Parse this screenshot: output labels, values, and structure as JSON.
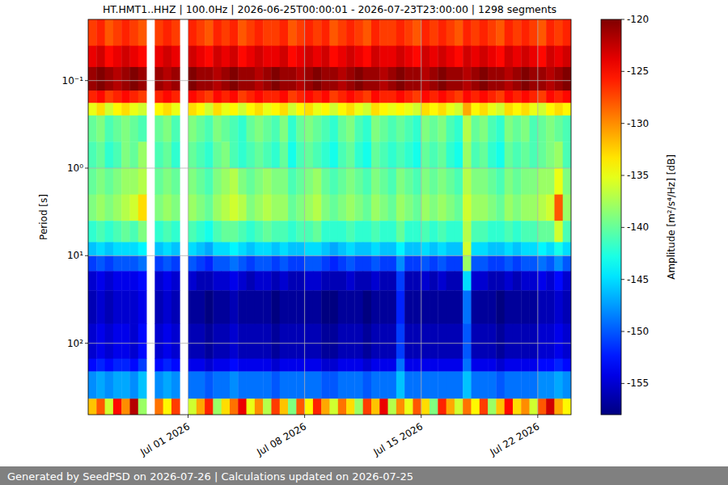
{
  "chart_data": {
    "type": "heatmap",
    "title": "HT.HMT1..HHZ | 100.0Hz | 2026-06-25T00:00:01 - 2026-07-23T23:00:00 | 1298 segments",
    "ylabel": "Period [s]",
    "colorbar_label": "Amplitude [m²/s⁴/Hz] [dB]",
    "footer": "Generated by SeedPSD on 2026-07-26 | Calculations updated on 2026-07-25",
    "x_bins": [
      "2026-06-25T00:00",
      "2026-06-25T12:00",
      "2026-06-26T00:00",
      "2026-06-26T12:00",
      "2026-06-27T00:00",
      "2026-06-27T12:00",
      "2026-06-28T00:00",
      "2026-06-28T12:00",
      "2026-06-29T00:00",
      "2026-06-29T12:00",
      "2026-06-30T00:00",
      "2026-06-30T12:00",
      "2026-07-01T00:00",
      "2026-07-01T12:00",
      "2026-07-02T00:00",
      "2026-07-02T12:00",
      "2026-07-03T00:00",
      "2026-07-03T12:00",
      "2026-07-04T00:00",
      "2026-07-04T12:00",
      "2026-07-05T00:00",
      "2026-07-05T12:00",
      "2026-07-06T00:00",
      "2026-07-06T12:00",
      "2026-07-07T00:00",
      "2026-07-07T12:00",
      "2026-07-08T00:00",
      "2026-07-08T12:00",
      "2026-07-09T00:00",
      "2026-07-09T12:00",
      "2026-07-10T00:00",
      "2026-07-10T12:00",
      "2026-07-11T00:00",
      "2026-07-11T12:00",
      "2026-07-12T00:00",
      "2026-07-12T12:00",
      "2026-07-13T00:00",
      "2026-07-13T12:00",
      "2026-07-14T00:00",
      "2026-07-14T12:00",
      "2026-07-15T00:00",
      "2026-07-15T12:00",
      "2026-07-16T00:00",
      "2026-07-16T12:00",
      "2026-07-17T00:00",
      "2026-07-17T12:00",
      "2026-07-18T00:00",
      "2026-07-18T12:00",
      "2026-07-19T00:00",
      "2026-07-19T12:00",
      "2026-07-20T00:00",
      "2026-07-20T12:00",
      "2026-07-21T00:00",
      "2026-07-21T12:00",
      "2026-07-22T00:00",
      "2026-07-22T12:00",
      "2026-07-23T00:00",
      "2026-07-23T12:00",
      "2026-07-24T00:00"
    ],
    "y_bins": [
      0.02,
      0.04,
      0.07,
      0.13,
      0.18,
      0.25,
      0.5,
      1,
      2,
      4,
      7,
      10,
      15,
      25,
      60,
      150,
      210,
      430,
      655
    ],
    "values": [
      [
        -127,
        -126,
        -128,
        -127,
        -126,
        -127,
        -128,
        null,
        -127,
        -126,
        -127,
        null,
        -126,
        -127,
        -128,
        -126,
        -127,
        -126,
        -128,
        -127,
        -126,
        -127,
        -127,
        -126,
        -128,
        -127,
        -126,
        -127,
        -126,
        -128,
        -127,
        -126,
        -127,
        -128,
        -126,
        -127,
        -127,
        -126,
        -127,
        -128,
        -126,
        -127,
        -126,
        -127,
        -128,
        -126,
        -127,
        -126,
        -127,
        -128,
        -126,
        -127,
        -126,
        -127,
        -128,
        -126,
        -127,
        -126
      ],
      [
        -124,
        -123,
        -125,
        -124,
        -123,
        -124,
        -125,
        null,
        -124,
        -123,
        -124,
        null,
        -123,
        -124,
        -125,
        -123,
        -124,
        -123,
        -125,
        -124,
        -123,
        -124,
        -124,
        -123,
        -125,
        -124,
        -123,
        -124,
        -123,
        -125,
        -124,
        -123,
        -124,
        -125,
        -123,
        -124,
        -124,
        -123,
        -124,
        -125,
        -123,
        -124,
        -123,
        -124,
        -125,
        -123,
        -124,
        -123,
        -124,
        -125,
        -123,
        -124,
        -123,
        -124,
        -125,
        -123,
        -124,
        -123
      ],
      [
        -121,
        -120,
        -121,
        -122,
        -121,
        -120,
        -121,
        null,
        -121,
        -122,
        -121,
        null,
        -120,
        -121,
        -121,
        -122,
        -121,
        -120,
        -121,
        -121,
        -122,
        -121,
        -120,
        -121,
        -121,
        -122,
        -121,
        -120,
        -121,
        -121,
        -122,
        -121,
        -120,
        -121,
        -121,
        -122,
        -121,
        -120,
        -121,
        -121,
        -122,
        -121,
        -120,
        -121,
        -121,
        -122,
        -121,
        -120,
        -121,
        -121,
        -122,
        -121,
        -120,
        -121,
        -121,
        -122,
        -121,
        -120
      ],
      [
        -126,
        -125,
        -127,
        -126,
        -125,
        -126,
        -127,
        null,
        -126,
        -125,
        -126,
        null,
        -125,
        -126,
        -127,
        -125,
        -126,
        -125,
        -127,
        -126,
        -125,
        -126,
        -126,
        -125,
        -127,
        -126,
        -125,
        -126,
        -125,
        -127,
        -126,
        -125,
        -126,
        -127,
        -125,
        -126,
        -126,
        -125,
        -126,
        -127,
        -125,
        -126,
        -125,
        -126,
        -127,
        -125,
        -126,
        -125,
        -126,
        -127,
        -125,
        -126,
        -125,
        -126,
        -127,
        -125,
        -126,
        -125
      ],
      [
        -135,
        -133,
        -136,
        -134,
        -133,
        -135,
        -136,
        null,
        -134,
        -133,
        -135,
        null,
        -133,
        -134,
        -136,
        -133,
        -135,
        -134,
        -136,
        -134,
        -133,
        -135,
        -134,
        -133,
        -136,
        -134,
        -133,
        -135,
        -134,
        -136,
        -134,
        -133,
        -135,
        -136,
        -133,
        -134,
        -135,
        -134,
        -135,
        -136,
        -133,
        -134,
        -133,
        -135,
        -136,
        -131,
        -134,
        -133,
        -135,
        -136,
        -133,
        -134,
        -133,
        -135,
        -136,
        -134,
        -133,
        -134
      ],
      [
        -140,
        -139,
        -141,
        -140,
        -139,
        -140,
        -141,
        null,
        -140,
        -139,
        -141,
        null,
        -139,
        -140,
        -141,
        -139,
        -140,
        -141,
        -142,
        -140,
        -139,
        -140,
        -141,
        -139,
        -142,
        -140,
        -139,
        -140,
        -141,
        -142,
        -140,
        -139,
        -141,
        -142,
        -139,
        -140,
        -141,
        -140,
        -141,
        -142,
        -139,
        -140,
        -139,
        -141,
        -142,
        -137,
        -140,
        -139,
        -141,
        -142,
        -139,
        -140,
        -139,
        -141,
        -140,
        -139,
        -140,
        -141
      ],
      [
        -141,
        -140,
        -142,
        -141,
        -139,
        -140,
        -138,
        null,
        -141,
        -140,
        -142,
        null,
        -140,
        -141,
        -142,
        -140,
        -139,
        -141,
        -142,
        -141,
        -140,
        -141,
        -142,
        -140,
        -143,
        -141,
        -140,
        -141,
        -142,
        -143,
        -141,
        -140,
        -142,
        -143,
        -140,
        -141,
        -142,
        -141,
        -142,
        -143,
        -140,
        -141,
        -140,
        -142,
        -143,
        -138,
        -141,
        -140,
        -142,
        -143,
        -140,
        -141,
        -140,
        -141,
        -140,
        -139,
        -138,
        -141
      ],
      [
        -140,
        -139,
        -140,
        -139,
        -138,
        -138,
        -137,
        null,
        -140,
        -139,
        -140,
        null,
        -139,
        -140,
        -141,
        -139,
        -138,
        -137,
        -139,
        -140,
        -139,
        -138,
        -139,
        -139,
        -141,
        -140,
        -139,
        -138,
        -140,
        -141,
        -140,
        -139,
        -140,
        -141,
        -139,
        -140,
        -141,
        -139,
        -140,
        -141,
        -139,
        -140,
        -139,
        -140,
        -141,
        -137,
        -139,
        -139,
        -140,
        -141,
        -139,
        -140,
        -139,
        -139,
        -138,
        -138,
        -135,
        -139
      ],
      [
        -139,
        -138,
        -139,
        -138,
        -137,
        -136,
        -133,
        null,
        -139,
        -138,
        -139,
        null,
        -138,
        -139,
        -140,
        -138,
        -137,
        -136,
        -137,
        -139,
        -138,
        -137,
        -138,
        -138,
        -140,
        -139,
        -138,
        -137,
        -139,
        -140,
        -139,
        -138,
        -139,
        -140,
        -138,
        -139,
        -140,
        -138,
        -139,
        -140,
        -138,
        -139,
        -138,
        -139,
        -140,
        -136,
        -138,
        -138,
        -139,
        -140,
        -138,
        -139,
        -138,
        -138,
        -137,
        -136,
        -128,
        -138
      ],
      [
        -142,
        -141,
        -142,
        -141,
        -140,
        -141,
        -139,
        null,
        -142,
        -141,
        -142,
        null,
        -141,
        -142,
        -143,
        -141,
        -140,
        -140,
        -141,
        -142,
        -141,
        -140,
        -141,
        -141,
        -142,
        -141,
        -141,
        -140,
        -142,
        -142,
        -142,
        -141,
        -142,
        -142,
        -141,
        -142,
        -142,
        -140,
        -142,
        -142,
        -141,
        -142,
        -141,
        -142,
        -142,
        -137,
        -141,
        -141,
        -142,
        -142,
        -141,
        -142,
        -141,
        -141,
        -140,
        -140,
        -136,
        -141
      ],
      [
        -146,
        -145,
        -146,
        -145,
        -145,
        -145,
        -144,
        null,
        -146,
        -145,
        -146,
        null,
        -145,
        -146,
        -147,
        -145,
        -145,
        -144,
        -145,
        -146,
        -145,
        -145,
        -146,
        -145,
        -146,
        -146,
        -145,
        -145,
        -146,
        -147,
        -146,
        -145,
        -146,
        -146,
        -145,
        -146,
        -146,
        -144,
        -146,
        -146,
        -145,
        -146,
        -145,
        -146,
        -146,
        -136,
        -145,
        -145,
        -146,
        -146,
        -145,
        -146,
        -145,
        -145,
        -144,
        -145,
        -143,
        -145
      ],
      [
        -151,
        -150,
        -151,
        -150,
        -150,
        -150,
        -149,
        null,
        -151,
        -150,
        -151,
        null,
        -150,
        -151,
        -152,
        -150,
        -150,
        -149,
        -150,
        -151,
        -150,
        -150,
        -151,
        -150,
        -151,
        -151,
        -150,
        -150,
        -151,
        -152,
        -151,
        -150,
        -151,
        -151,
        -150,
        -151,
        -151,
        -148,
        -151,
        -151,
        -150,
        -151,
        -150,
        -151,
        -151,
        -138,
        -150,
        -150,
        -151,
        -151,
        -150,
        -151,
        -150,
        -150,
        -149,
        -150,
        -148,
        -150
      ],
      [
        -155,
        -154,
        -155,
        -154,
        -154,
        -154,
        -153,
        null,
        -155,
        -154,
        -155,
        null,
        -155,
        -156,
        -156,
        -155,
        -155,
        -154,
        -155,
        -156,
        -155,
        -155,
        -156,
        -155,
        -156,
        -156,
        -155,
        -155,
        -156,
        -156,
        -156,
        -155,
        -156,
        -156,
        -155,
        -156,
        -156,
        -151,
        -156,
        -156,
        -155,
        -156,
        -155,
        -156,
        -156,
        -145,
        -155,
        -155,
        -156,
        -156,
        -155,
        -156,
        -155,
        -155,
        -154,
        -155,
        -153,
        -155
      ],
      [
        -156,
        -155,
        -156,
        -155,
        -155,
        -155,
        -154,
        null,
        -156,
        -155,
        -156,
        null,
        -157,
        -157,
        -158,
        -157,
        -157,
        -156,
        -157,
        -157,
        -157,
        -157,
        -158,
        -157,
        -157,
        -157,
        -157,
        -157,
        -158,
        -158,
        -157,
        -157,
        -157,
        -158,
        -157,
        -157,
        -157,
        -152,
        -157,
        -157,
        -157,
        -157,
        -157,
        -157,
        -157,
        -149,
        -157,
        -157,
        -157,
        -158,
        -157,
        -157,
        -157,
        -157,
        -156,
        -156,
        -155,
        -156
      ],
      [
        -155,
        -154,
        -155,
        -154,
        -154,
        -155,
        -153,
        null,
        -155,
        -154,
        -155,
        null,
        -156,
        -156,
        -157,
        -156,
        -156,
        -155,
        -156,
        -156,
        -156,
        -156,
        -157,
        -156,
        -156,
        -156,
        -156,
        -156,
        -157,
        -157,
        -156,
        -156,
        -156,
        -157,
        -156,
        -156,
        -156,
        -151,
        -156,
        -156,
        -156,
        -156,
        -156,
        -156,
        -156,
        -150,
        -156,
        -156,
        -156,
        -157,
        -156,
        -156,
        -156,
        -156,
        -155,
        -155,
        -154,
        -155
      ],
      [
        -153,
        -152,
        -153,
        -152,
        -152,
        -153,
        -151,
        null,
        -153,
        -152,
        -153,
        null,
        -154,
        -154,
        -155,
        -154,
        -154,
        -153,
        -154,
        -154,
        -154,
        -154,
        -155,
        -154,
        -154,
        -154,
        -154,
        -154,
        -155,
        -155,
        -154,
        -154,
        -154,
        -155,
        -154,
        -154,
        -154,
        -149,
        -154,
        -154,
        -154,
        -154,
        -154,
        -154,
        -154,
        -149,
        -154,
        -154,
        -154,
        -155,
        -154,
        -154,
        -154,
        -154,
        -153,
        -153,
        -152,
        -153
      ],
      [
        -148,
        -147,
        -148,
        -147,
        -147,
        -148,
        -146,
        null,
        -148,
        -147,
        -148,
        null,
        -149,
        -149,
        -150,
        -149,
        -149,
        -148,
        -149,
        -149,
        -149,
        -149,
        -150,
        -149,
        -149,
        -149,
        -149,
        -149,
        -150,
        -150,
        -149,
        -149,
        -149,
        -150,
        -149,
        -149,
        -149,
        -146,
        -149,
        -149,
        -149,
        -149,
        -149,
        -149,
        -149,
        -146,
        -149,
        -149,
        -149,
        -150,
        -149,
        -149,
        -149,
        -149,
        -148,
        -148,
        -147,
        -148
      ],
      [
        -132,
        -128,
        -136,
        -125,
        -130,
        -122,
        -138,
        null,
        -129,
        -134,
        -127,
        null,
        -136,
        -131,
        -126,
        -138,
        -133,
        -129,
        -124,
        -135,
        -130,
        -137,
        -127,
        -132,
        -139,
        -128,
        -134,
        -126,
        -131,
        -136,
        -129,
        -133,
        -138,
        -127,
        -132,
        -124,
        -137,
        -130,
        -135,
        -128,
        -133,
        -139,
        -126,
        -131,
        -136,
        -129,
        -134,
        -127,
        -138,
        -132,
        -125,
        -133,
        -130,
        -136,
        -128,
        -123,
        -131,
        -134
      ]
    ],
    "xlim": [
      "2026-06-25T00:00",
      "2026-07-24T00:00"
    ],
    "xticks": [
      {
        "value": "2026-07-01T00:00",
        "label": "Jul 01 2026"
      },
      {
        "value": "2026-07-08T00:00",
        "label": "Jul 08 2026"
      },
      {
        "value": "2026-07-15T00:00",
        "label": "Jul 15 2026"
      },
      {
        "value": "2026-07-22T00:00",
        "label": "Jul 22 2026"
      }
    ],
    "ylim": [
      0.02,
      655
    ],
    "yticks": [
      {
        "value": 0.1,
        "label": "10⁻¹"
      },
      {
        "value": 1,
        "label": "10⁰"
      },
      {
        "value": 10,
        "label": "10¹"
      },
      {
        "value": 100,
        "label": "10²"
      }
    ],
    "log": "y",
    "grid": true,
    "colorbar_lim": [
      -158,
      -120
    ],
    "colorbar_ticks": [
      -120,
      -125,
      -130,
      -135,
      -140,
      -145,
      -150,
      -155
    ]
  }
}
